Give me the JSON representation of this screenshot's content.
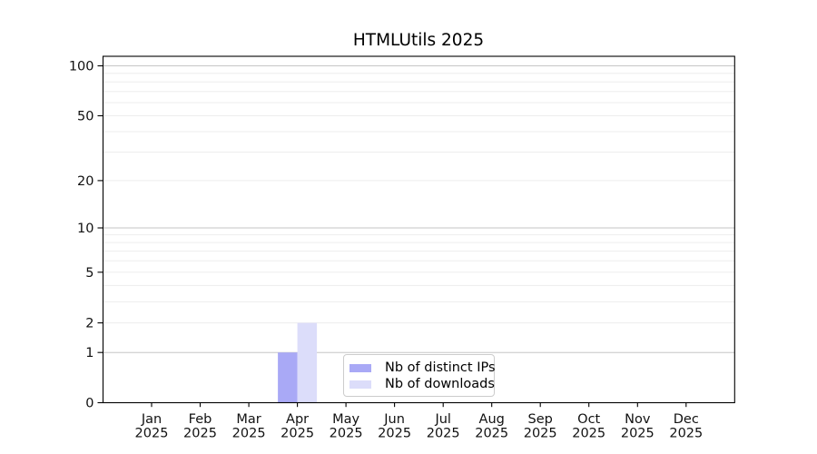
{
  "title": "HTMLUtils 2025",
  "chart_data": {
    "type": "bar",
    "title": "HTMLUtils 2025",
    "categories": [
      "Jan",
      "Feb",
      "Mar",
      "Apr",
      "May",
      "Jun",
      "Jul",
      "Aug",
      "Sep",
      "Oct",
      "Nov",
      "Dec"
    ],
    "category_year_line": "2025",
    "series": [
      {
        "name": "Nb of distinct IPs",
        "color": "#a9a9f6",
        "values": [
          0,
          0,
          0,
          1,
          0,
          0,
          0,
          0,
          0,
          0,
          0,
          0
        ]
      },
      {
        "name": "Nb of downloads",
        "color": "#dcddfa",
        "values": [
          0,
          0,
          0,
          2,
          0,
          0,
          0,
          0,
          0,
          0,
          0,
          0
        ]
      }
    ],
    "yscale": "log1p",
    "ylim": [
      0,
      114
    ],
    "yticks": [
      0,
      1,
      2,
      5,
      10,
      20,
      50,
      100
    ],
    "major_gridlines": [
      1,
      10,
      100
    ],
    "minor_gridlines": [
      2,
      3,
      4,
      5,
      6,
      7,
      8,
      9,
      20,
      30,
      40,
      50,
      60,
      70,
      80,
      90
    ],
    "grid": true,
    "legend_position": "lower center"
  },
  "colors": {
    "background": "#ffffff",
    "axis": "#000000",
    "tick_text": "#111111",
    "grid_major": "#c6c6c6",
    "grid_minor": "#ededed",
    "legend_border": "#cccccc"
  }
}
